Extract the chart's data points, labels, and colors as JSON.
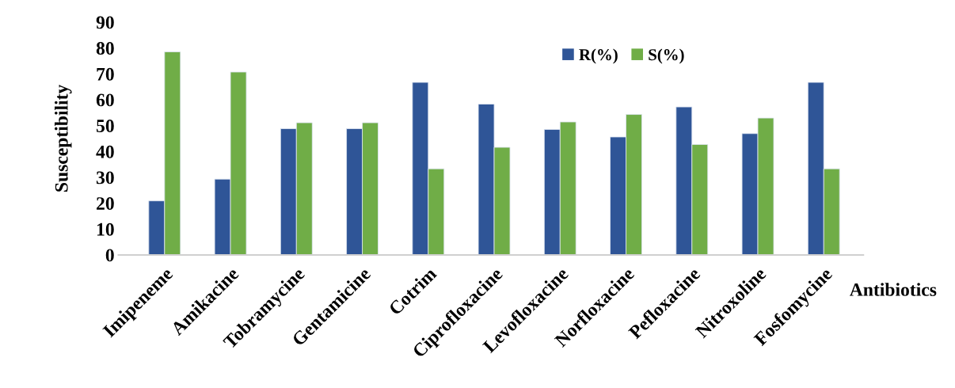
{
  "chart_data": {
    "type": "bar",
    "ylabel": "Susceptibility",
    "xlabel": "Antibiotics",
    "categories": [
      "Imipeneme",
      "Amikacine",
      "Tobramycine",
      "Gentamicine",
      "Cotrim",
      "Ciprofloxacine",
      "Levofloxacine",
      "Norfloxacine",
      "Pefloxacine",
      "Nitroxoline",
      "Fosfomycine"
    ],
    "series": [
      {
        "name": "R(%)",
        "color": "#2f5597",
        "values": [
          20.9,
          29.3,
          48.8,
          48.8,
          66.7,
          58.3,
          48.5,
          45.6,
          57.2,
          46.9,
          66.7
        ]
      },
      {
        "name": "S(%)",
        "color": "#70ad47",
        "values": [
          78.5,
          70.7,
          51.1,
          51.1,
          33.3,
          41.6,
          51.4,
          54.3,
          42.7,
          52.9,
          33.3
        ]
      }
    ],
    "ylim": [
      0,
      90
    ],
    "yticks": [
      0,
      10,
      20,
      30,
      40,
      50,
      60,
      70,
      80,
      90
    ],
    "grid": false,
    "legend": "top right"
  }
}
